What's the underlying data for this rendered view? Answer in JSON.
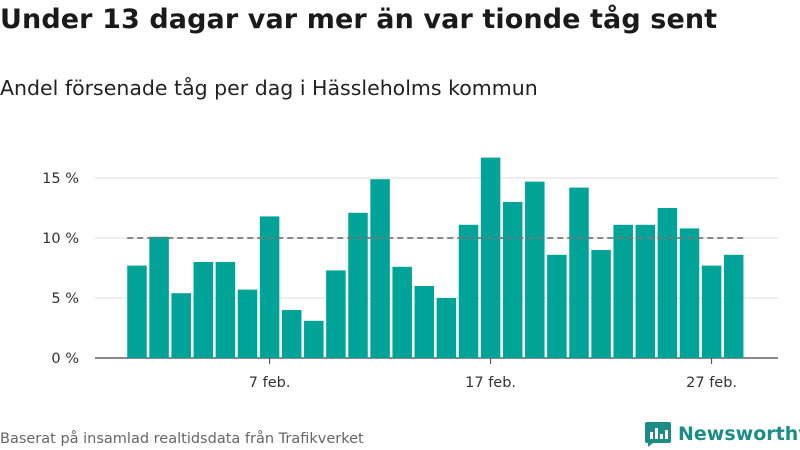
{
  "header": {
    "title": "Under 13 dagar var mer än var tionde tåg sent",
    "subtitle": "Andel försenade tåg per dag i Hässleholms kommun"
  },
  "footer": {
    "source": "Baserat på insamlad realtidsdata från Trafikverket",
    "logo_text": "Newsworthy"
  },
  "colors": {
    "bar": "#00a398",
    "reference_line": "#777777",
    "grid": "#dddddd",
    "brand": "#1b8d86"
  },
  "chart_data": {
    "type": "bar",
    "title": "Under 13 dagar var mer än var tionde tåg sent",
    "subtitle": "Andel försenade tåg per dag i Hässleholms kommun",
    "xlabel": "",
    "ylabel": "",
    "x": [
      1,
      2,
      3,
      4,
      5,
      6,
      7,
      8,
      9,
      10,
      11,
      12,
      13,
      14,
      15,
      16,
      17,
      18,
      19,
      20,
      21,
      22,
      23,
      24,
      25,
      26,
      27,
      28,
      29
    ],
    "values": [
      7.7,
      10.1,
      5.4,
      8.0,
      8.0,
      5.7,
      11.8,
      4.0,
      3.1,
      7.3,
      12.1,
      14.9,
      7.6,
      6.0,
      5.0,
      11.1,
      16.7,
      13.0,
      14.7,
      8.6,
      14.2,
      9.0,
      11.1,
      11.1,
      12.5,
      10.8,
      7.7,
      8.6,
      0
    ],
    "unit": "%",
    "x_ticks": [
      {
        "x": 7,
        "label": "7 feb."
      },
      {
        "x": 17,
        "label": "17 feb."
      },
      {
        "x": 27,
        "label": "27 feb."
      }
    ],
    "y_ticks": [
      {
        "value": 0,
        "label": "0 %"
      },
      {
        "value": 5,
        "label": "5 %"
      },
      {
        "value": 10,
        "label": "10 %"
      },
      {
        "value": 15,
        "label": "15 %"
      }
    ],
    "ylim": [
      0,
      17
    ],
    "reference_line": {
      "value": 10,
      "style": "dashed"
    },
    "grid": true,
    "legend": "none"
  }
}
